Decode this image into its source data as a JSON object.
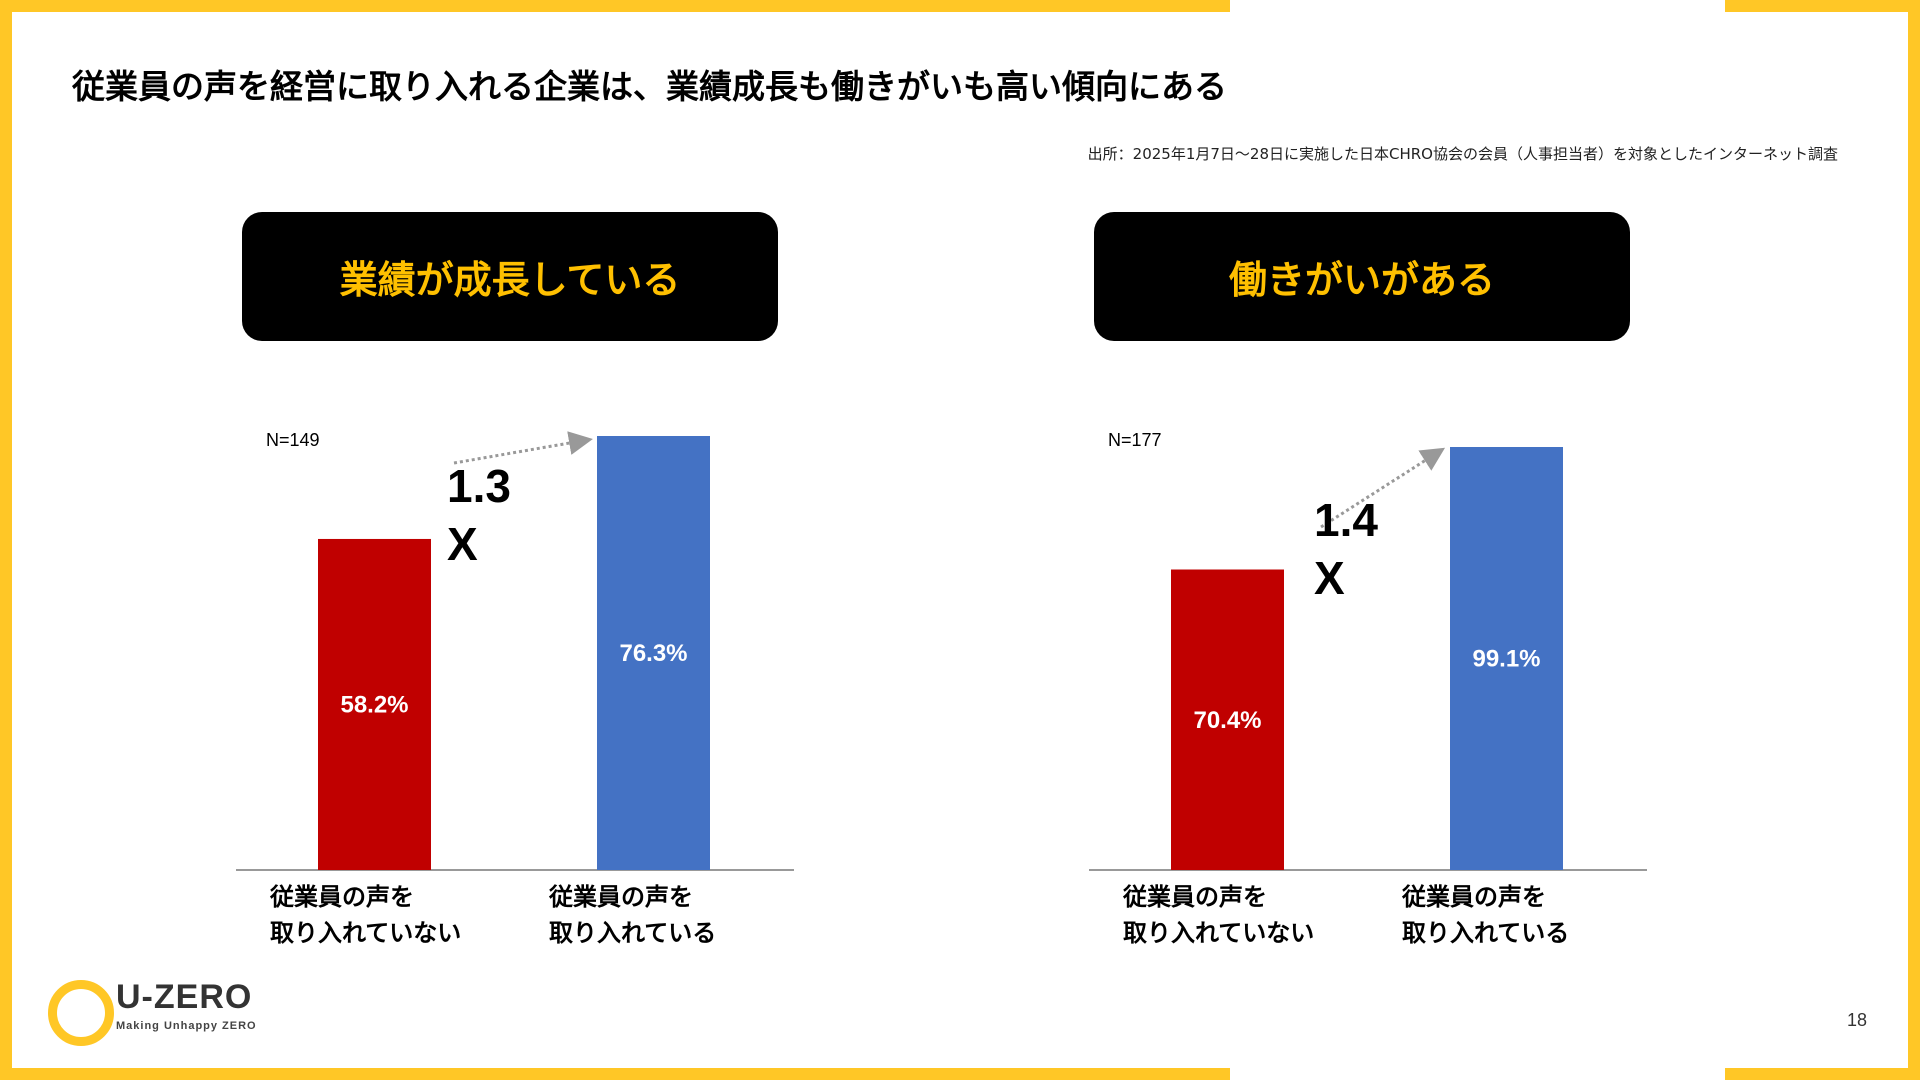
{
  "title": "従業員の声を経営に取り入れる企業は、業績成長も働きがいも高い傾向にある",
  "source": "出所：2025年1月7日〜28日に実施した日本CHRO協会の会員（人事担当者）を対象としたインターネット調査",
  "colors": {
    "frame": "#FFC726",
    "header_bg": "#000000",
    "header_text": "#FFC000",
    "bar_not_adopting": "#C00000",
    "bar_adopting": "#4472C4"
  },
  "chart_data": [
    {
      "type": "bar",
      "title": "業績が成長している",
      "n_label": "N=149",
      "categories": [
        [
          "従業員の声を",
          "取り入れていない"
        ],
        [
          "従業員の声を",
          "取り入れている"
        ]
      ],
      "values": [
        58.2,
        76.3
      ],
      "value_labels": [
        "58.2%",
        "76.3%"
      ],
      "ratio_label": [
        "1.3",
        "X"
      ],
      "ylim": [
        0,
        76.3
      ]
    },
    {
      "type": "bar",
      "title": "働きがいがある",
      "n_label": "N=177",
      "categories": [
        [
          "従業員の声を",
          "取り入れていない"
        ],
        [
          "従業員の声を",
          "取り入れている"
        ]
      ],
      "values": [
        70.4,
        99.1
      ],
      "value_labels": [
        "70.4%",
        "99.1%"
      ],
      "ratio_label": [
        "1.4",
        "X"
      ],
      "ylim": [
        0,
        99.1
      ]
    }
  ],
  "logo": {
    "name": "U-ZERO",
    "tagline": "Making Unhappy ZERO"
  },
  "page_number": "18"
}
